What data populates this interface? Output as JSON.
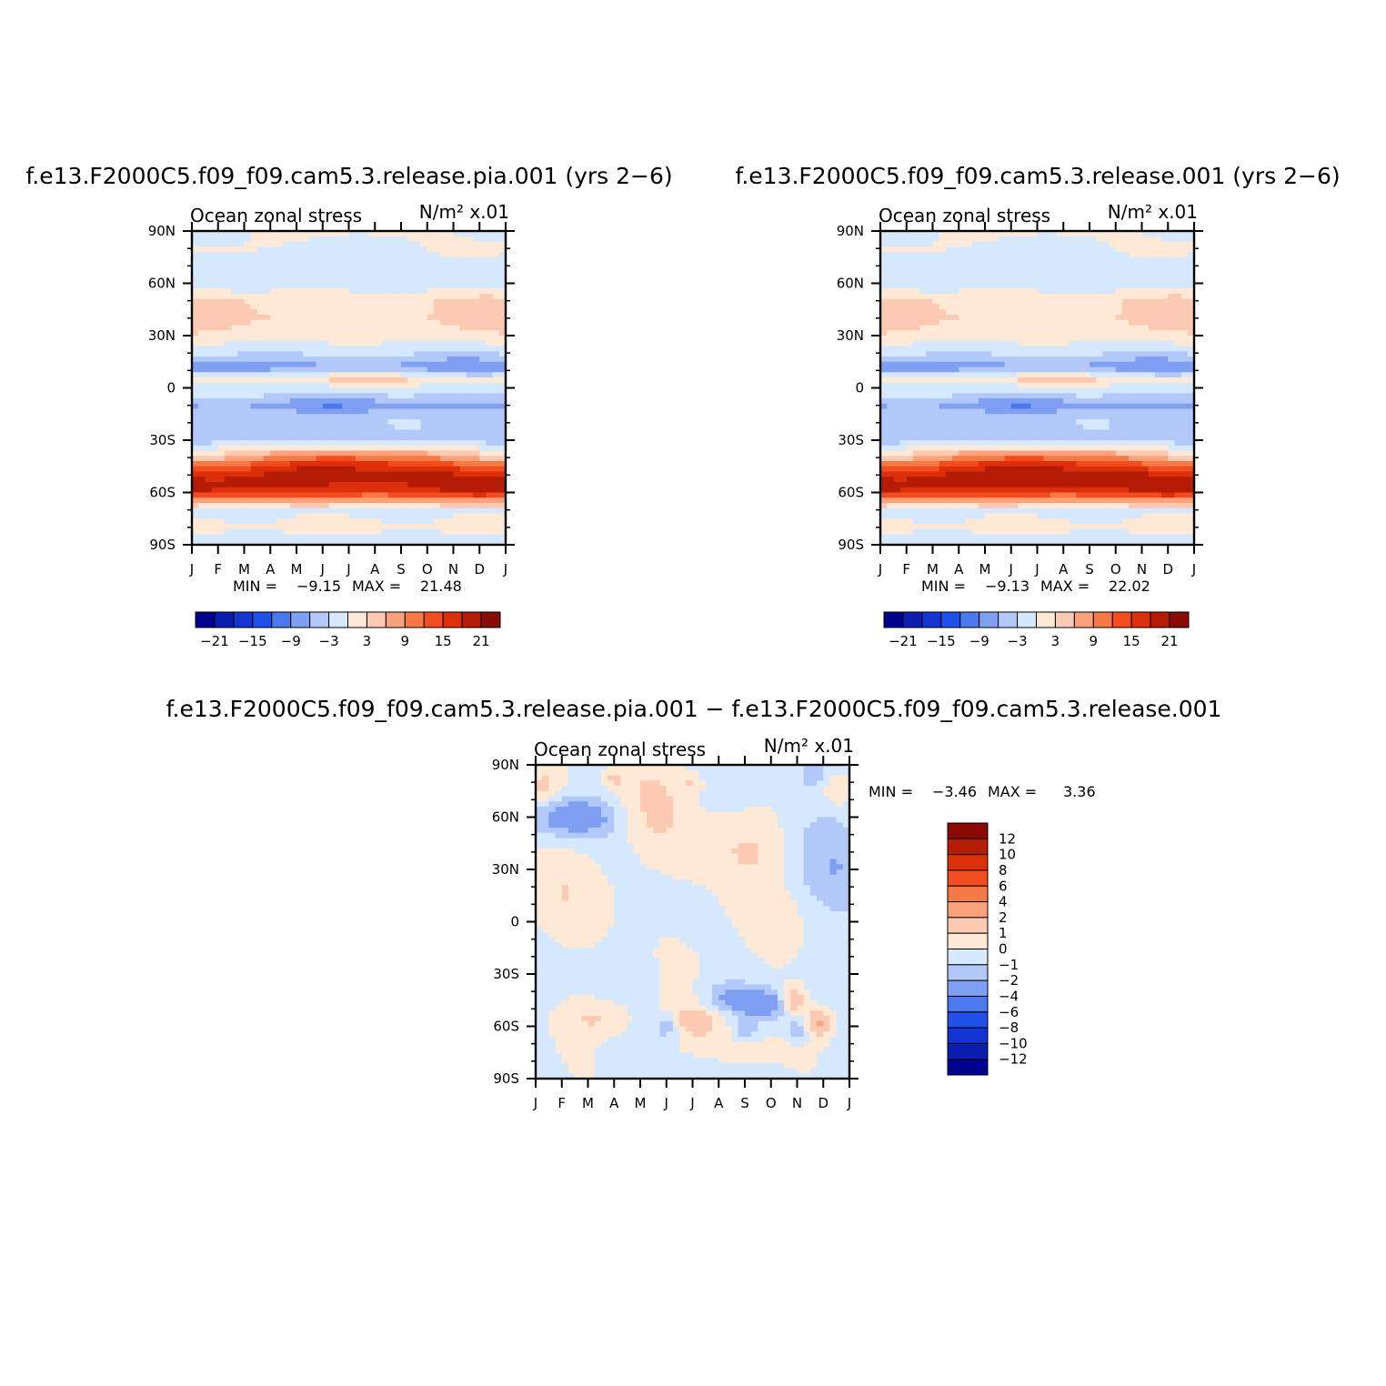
{
  "chart_data": [
    {
      "type": "heatmap",
      "id": "panel1",
      "title": "f.e13.F2000C5.f09_f09.cam5.3.release.pia.001 (yrs 2−6)",
      "left_label": "Ocean zonal stress",
      "right_label": "N/m² x.01",
      "x_ticks": [
        "J",
        "F",
        "M",
        "A",
        "M",
        "J",
        "J",
        "A",
        "S",
        "O",
        "N",
        "D",
        "J"
      ],
      "y_ticks": [
        "90N",
        "60N",
        "30N",
        "0",
        "30S",
        "60S",
        "90S"
      ],
      "ylim": [
        -90,
        90
      ],
      "min_label": "MIN =",
      "min_value": "−9.15",
      "max_label": "MAX =",
      "max_value": "21.48",
      "levels": [
        -24,
        -21,
        -18,
        -15,
        -12,
        -9,
        -6,
        -3,
        0,
        3,
        6,
        9,
        12,
        15,
        18,
        21,
        24
      ],
      "colorbar_labels": [
        "−21",
        "−15",
        "−9",
        "−3",
        "3",
        "9",
        "15",
        "21"
      ],
      "colorbar_label_values": [
        -21,
        -15,
        -9,
        -3,
        3,
        9,
        15,
        21
      ],
      "profile": {
        "lat": [
          90,
          80,
          70,
          60,
          50,
          40,
          30,
          20,
          12,
          5,
          0,
          -5,
          -10,
          -15,
          -20,
          -30,
          -40,
          -45,
          -50,
          -55,
          -60,
          -65,
          -70,
          -80,
          -90
        ],
        "jan": [
          -1,
          1,
          -1,
          -2,
          4,
          5,
          2,
          -3,
          -10,
          1,
          -2,
          -3,
          -6,
          -4,
          -4,
          -4,
          5,
          12,
          17,
          20,
          18,
          7,
          -1,
          1,
          -2
        ],
        "jul": [
          1,
          -2,
          -2,
          -2,
          2,
          2,
          1,
          -2,
          -6,
          4,
          -1,
          -4,
          -9,
          -5,
          -3,
          -4,
          12,
          18,
          20,
          18,
          15,
          6,
          -1,
          1,
          -2
        ]
      }
    },
    {
      "type": "heatmap",
      "id": "panel2",
      "title": "f.e13.F2000C5.f09_f09.cam5.3.release.001 (yrs 2−6)",
      "left_label": "Ocean zonal stress",
      "right_label": "N/m² x.01",
      "x_ticks": [
        "J",
        "F",
        "M",
        "A",
        "M",
        "J",
        "J",
        "A",
        "S",
        "O",
        "N",
        "D",
        "J"
      ],
      "y_ticks": [
        "90N",
        "60N",
        "30N",
        "0",
        "30S",
        "60S",
        "90S"
      ],
      "ylim": [
        -90,
        90
      ],
      "min_label": "MIN =",
      "min_value": "−9.13",
      "max_label": "MAX =",
      "max_value": "22.02",
      "levels": [
        -24,
        -21,
        -18,
        -15,
        -12,
        -9,
        -6,
        -3,
        0,
        3,
        6,
        9,
        12,
        15,
        18,
        21,
        24
      ],
      "colorbar_labels": [
        "−21",
        "−15",
        "−9",
        "−3",
        "3",
        "9",
        "15",
        "21"
      ],
      "colorbar_label_values": [
        -21,
        -15,
        -9,
        -3,
        3,
        9,
        15,
        21
      ],
      "profile": {
        "lat": [
          90,
          80,
          70,
          60,
          50,
          40,
          30,
          20,
          12,
          5,
          0,
          -5,
          -10,
          -15,
          -20,
          -30,
          -40,
          -45,
          -50,
          -55,
          -60,
          -65,
          -70,
          -80,
          -90
        ],
        "jan": [
          -1,
          1,
          -1,
          -2,
          4,
          5,
          2,
          -3,
          -10,
          1,
          -2,
          -3,
          -6,
          -4,
          -4,
          -4,
          5,
          12,
          17,
          20,
          18,
          7,
          -1,
          1,
          -2
        ],
        "jul": [
          1,
          -2,
          -2,
          -2,
          2,
          2,
          1,
          -2,
          -6,
          4,
          -1,
          -4,
          -9,
          -5,
          -3,
          -4,
          12,
          18,
          21,
          19,
          15,
          6,
          -1,
          1,
          -2
        ]
      }
    },
    {
      "type": "heatmap",
      "id": "panel3",
      "title": "f.e13.F2000C5.f09_f09.cam5.3.release.pia.001 − f.e13.F2000C5.f09_f09.cam5.3.release.001",
      "left_label": "Ocean zonal stress",
      "right_label": "N/m² x.01",
      "x_ticks": [
        "J",
        "F",
        "M",
        "A",
        "M",
        "J",
        "J",
        "A",
        "S",
        "O",
        "N",
        "D",
        "J"
      ],
      "y_ticks": [
        "90N",
        "60N",
        "30N",
        "0",
        "30S",
        "60S",
        "90S"
      ],
      "ylim": [
        -90,
        90
      ],
      "min_label": "MIN =",
      "min_value": "−3.46",
      "max_label": "MAX =",
      "max_value": "3.36",
      "levels": [
        -14,
        -12,
        -10,
        -8,
        -6,
        -4,
        -2,
        -1,
        0,
        1,
        2,
        4,
        6,
        8,
        10,
        12,
        14
      ],
      "colorbar_labels": [
        "12",
        "10",
        "8",
        "6",
        "4",
        "2",
        "1",
        "0",
        "−1",
        "−2",
        "−4",
        "−6",
        "−8",
        "−10",
        "−12"
      ],
      "colorbar_label_values": [
        12,
        10,
        8,
        6,
        4,
        2,
        1,
        0,
        -1,
        -2,
        -4,
        -6,
        -8,
        -10,
        -12
      ],
      "anomalies": [
        {
          "month": 1.5,
          "lat": 60,
          "amp": -3.0,
          "w": 1.1,
          "h": 8
        },
        {
          "month": 0.3,
          "lat": 77,
          "amp": 1.5,
          "w": 0.5,
          "h": 8
        },
        {
          "month": 6.3,
          "lat": -56,
          "amp": 2.0,
          "w": 0.9,
          "h": 10
        },
        {
          "month": 7.5,
          "lat": -45,
          "amp": -2.8,
          "w": 0.9,
          "h": 7
        },
        {
          "month": 8.8,
          "lat": -48,
          "amp": -2.6,
          "w": 0.5,
          "h": 6
        },
        {
          "month": 9.9,
          "lat": -45,
          "amp": 2.0,
          "w": 0.3,
          "h": 6
        },
        {
          "month": 10.9,
          "lat": -58,
          "amp": 2.6,
          "w": 0.4,
          "h": 6
        },
        {
          "month": 10.0,
          "lat": -62,
          "amp": -1.8,
          "w": 0.3,
          "h": 5
        },
        {
          "month": 5.0,
          "lat": -60,
          "amp": -1.8,
          "w": 0.3,
          "h": 5
        },
        {
          "month": 8.0,
          "lat": -62,
          "amp": -1.8,
          "w": 0.3,
          "h": 5
        },
        {
          "month": 2.5,
          "lat": -55,
          "amp": 1.5,
          "w": 1.0,
          "h": 8
        },
        {
          "month": 8.5,
          "lat": 5,
          "amp": 1.0,
          "w": 1.5,
          "h": 25
        },
        {
          "month": 1.5,
          "lat": 20,
          "amp": 1.0,
          "w": 1.5,
          "h": 20
        },
        {
          "month": 4.5,
          "lat": 70,
          "amp": 1.3,
          "w": 1.0,
          "h": 20
        },
        {
          "month": 8.0,
          "lat": 45,
          "amp": 1.2,
          "w": 1.5,
          "h": 15
        },
        {
          "month": 6.0,
          "lat": 80,
          "amp": 1.3,
          "w": 0.3,
          "h": 5
        },
        {
          "month": 3.0,
          "lat": 82,
          "amp": 1.2,
          "w": 0.3,
          "h": 5
        },
        {
          "month": 10.6,
          "lat": 85,
          "amp": -1.5,
          "w": 0.3,
          "h": 5
        },
        {
          "month": 11.5,
          "lat": 75,
          "amp": 1.4,
          "w": 0.3,
          "h": 6
        },
        {
          "month": 8.0,
          "lat": -75,
          "amp": 1.2,
          "w": 1.0,
          "h": 5
        },
        {
          "month": 11.0,
          "lat": 30,
          "amp": -1.5,
          "w": 1.5,
          "h": 20
        }
      ]
    }
  ],
  "colors": {
    "palette": [
      "#00008f",
      "#0a1fb0",
      "#1235d4",
      "#1f50ea",
      "#4a78ee",
      "#7f9ff2",
      "#b1c8f8",
      "#d6e8fd",
      "#fde9d6",
      "#fcc9b2",
      "#fba27c",
      "#f77945",
      "#f24d1f",
      "#dc2f0a",
      "#b41c06",
      "#8a0a05"
    ]
  }
}
